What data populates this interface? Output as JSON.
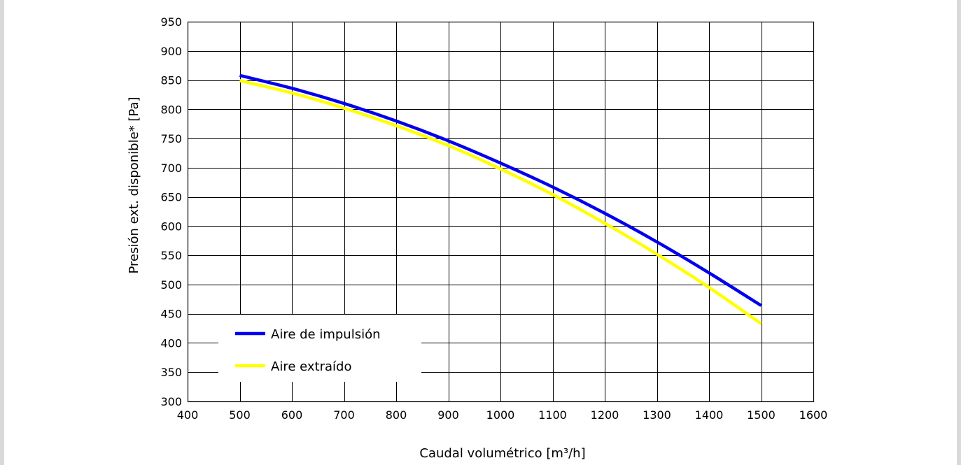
{
  "chart_data": {
    "type": "line",
    "xlabel": "Caudal volumétrico [m³/h]",
    "ylabel": "Presión ext. disponible* [Pa]",
    "xlim": [
      400,
      1600
    ],
    "ylim": [
      300,
      950
    ],
    "x_ticks": [
      400,
      500,
      600,
      700,
      800,
      900,
      1000,
      1100,
      1200,
      1300,
      1400,
      1500,
      1600
    ],
    "y_ticks": [
      300,
      350,
      400,
      450,
      500,
      550,
      600,
      650,
      700,
      750,
      800,
      850,
      900,
      950
    ],
    "grid": true,
    "legend_position": "lower-left",
    "series": [
      {
        "name": "Aire de impulsión",
        "color": "#0000ee",
        "x": [
          500,
          600,
          700,
          800,
          900,
          1000,
          1100,
          1200,
          1300,
          1400,
          1500
        ],
        "y": [
          858,
          836,
          810,
          780,
          746,
          708,
          667,
          622,
          573,
          520,
          464
        ]
      },
      {
        "name": "Aire extraído",
        "color": "#ffff00",
        "x": [
          500,
          600,
          700,
          800,
          900,
          1000,
          1100,
          1200,
          1300,
          1400,
          1500
        ],
        "y": [
          849,
          828,
          802,
          772,
          738,
          698,
          654,
          605,
          552,
          495,
          433
        ]
      }
    ]
  }
}
